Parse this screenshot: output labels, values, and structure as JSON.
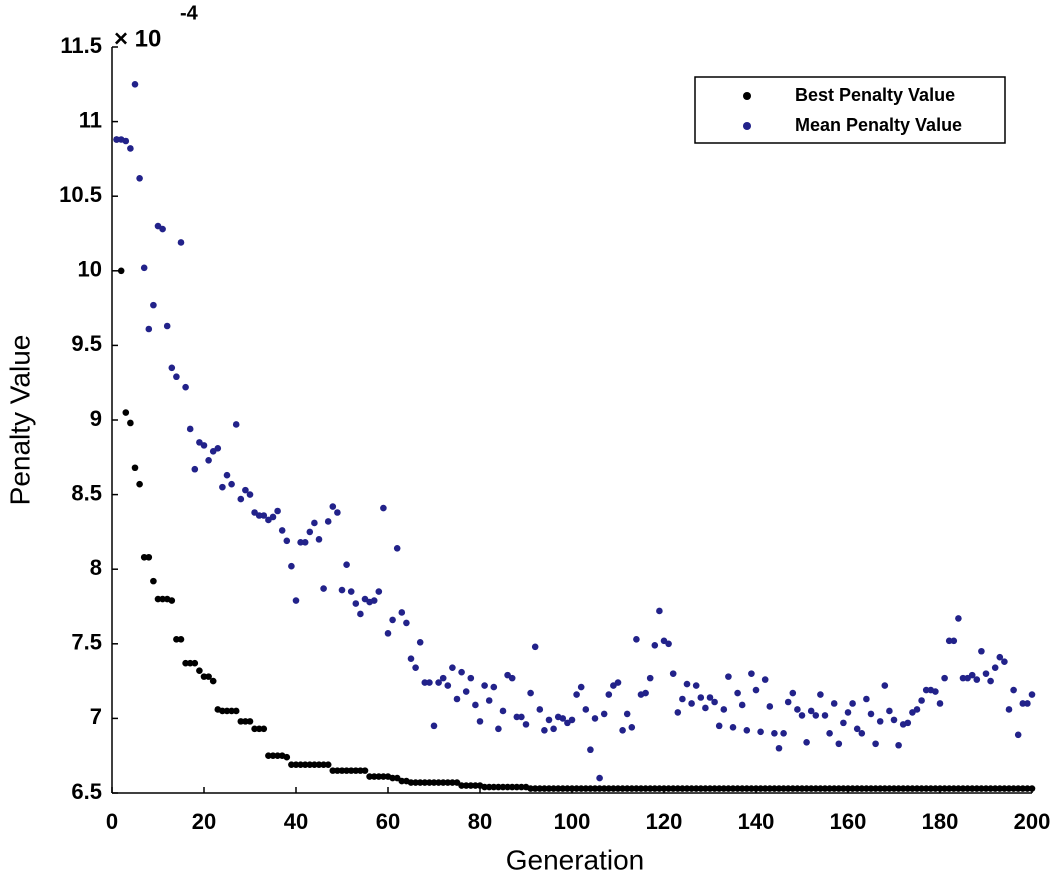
{
  "chart_data": {
    "type": "scatter",
    "xlabel": "Generation",
    "ylabel": "Penalty Value",
    "y_multiplier": {
      "base": "× 10",
      "exponent": "-4"
    },
    "xlim": [
      0,
      200
    ],
    "xticks": [
      0,
      20,
      40,
      60,
      80,
      100,
      120,
      140,
      160,
      180,
      200
    ],
    "ylim": [
      6.5,
      11.5
    ],
    "yticks": [
      6.5,
      7,
      7.5,
      8,
      8.5,
      9,
      9.5,
      10,
      10.5,
      11,
      11.5
    ],
    "grid": false,
    "legend": "upper right",
    "x": [
      1,
      2,
      3,
      4,
      5,
      6,
      7,
      8,
      9,
      10,
      11,
      12,
      13,
      14,
      15,
      16,
      17,
      18,
      19,
      20,
      21,
      22,
      23,
      24,
      25,
      26,
      27,
      28,
      29,
      30,
      31,
      32,
      33,
      34,
      35,
      36,
      37,
      38,
      39,
      40,
      41,
      42,
      43,
      44,
      45,
      46,
      47,
      48,
      49,
      50,
      51,
      52,
      53,
      54,
      55,
      56,
      57,
      58,
      59,
      60,
      61,
      62,
      63,
      64,
      65,
      66,
      67,
      68,
      69,
      70,
      71,
      72,
      73,
      74,
      75,
      76,
      77,
      78,
      79,
      80,
      81,
      82,
      83,
      84,
      85,
      86,
      87,
      88,
      89,
      90,
      91,
      92,
      93,
      94,
      95,
      96,
      97,
      98,
      99,
      100,
      101,
      102,
      103,
      104,
      105,
      106,
      107,
      108,
      109,
      110,
      111,
      112,
      113,
      114,
      115,
      116,
      117,
      118,
      119,
      120,
      121,
      122,
      123,
      124,
      125,
      126,
      127,
      128,
      129,
      130,
      131,
      132,
      133,
      134,
      135,
      136,
      137,
      138,
      139,
      140,
      141,
      142,
      143,
      144,
      145,
      146,
      147,
      148,
      149,
      150,
      151,
      152,
      153,
      154,
      155,
      156,
      157,
      158,
      159,
      160,
      161,
      162,
      163,
      164,
      165,
      166,
      167,
      168,
      169,
      170,
      171,
      172,
      173,
      174,
      175,
      176,
      177,
      178,
      179,
      180,
      181,
      182,
      183,
      184,
      185,
      186,
      187,
      188,
      189,
      190,
      191,
      192,
      193,
      194,
      195,
      196,
      197,
      198,
      199,
      200
    ],
    "series": [
      {
        "name": "Best Penalty Value",
        "color": "#000000",
        "values": [
          10.88,
          10.0,
          9.05,
          8.98,
          8.68,
          8.57,
          8.08,
          8.08,
          7.92,
          7.8,
          7.8,
          7.8,
          7.79,
          7.53,
          7.53,
          7.37,
          7.37,
          7.37,
          7.32,
          7.28,
          7.28,
          7.25,
          7.06,
          7.05,
          7.05,
          7.05,
          7.05,
          6.98,
          6.98,
          6.98,
          6.93,
          6.93,
          6.93,
          6.75,
          6.75,
          6.75,
          6.75,
          6.74,
          6.69,
          6.69,
          6.69,
          6.69,
          6.69,
          6.69,
          6.69,
          6.69,
          6.69,
          6.65,
          6.65,
          6.65,
          6.65,
          6.65,
          6.65,
          6.65,
          6.65,
          6.61,
          6.61,
          6.61,
          6.61,
          6.61,
          6.6,
          6.6,
          6.58,
          6.58,
          6.57,
          6.57,
          6.57,
          6.57,
          6.57,
          6.57,
          6.57,
          6.57,
          6.57,
          6.57,
          6.57,
          6.55,
          6.55,
          6.55,
          6.55,
          6.55,
          6.54,
          6.54,
          6.54,
          6.54,
          6.54,
          6.54,
          6.54,
          6.54,
          6.54,
          6.54,
          6.53,
          6.53,
          6.53,
          6.53,
          6.53,
          6.53,
          6.53,
          6.53,
          6.53,
          6.53,
          6.53,
          6.53,
          6.53,
          6.53,
          6.53,
          6.53,
          6.53,
          6.53,
          6.53,
          6.53,
          6.53,
          6.53,
          6.53,
          6.53,
          6.53,
          6.53,
          6.53,
          6.53,
          6.53,
          6.53,
          6.53,
          6.53,
          6.53,
          6.53,
          6.53,
          6.53,
          6.53,
          6.53,
          6.53,
          6.53,
          6.53,
          6.53,
          6.53,
          6.53,
          6.53,
          6.53,
          6.53,
          6.53,
          6.53,
          6.53,
          6.53,
          6.53,
          6.53,
          6.53,
          6.53,
          6.53,
          6.53,
          6.53,
          6.53,
          6.53,
          6.53,
          6.53,
          6.53,
          6.53,
          6.53,
          6.53,
          6.53,
          6.53,
          6.53,
          6.53,
          6.53,
          6.53,
          6.53,
          6.53,
          6.53,
          6.53,
          6.53,
          6.53,
          6.53,
          6.53,
          6.53,
          6.53,
          6.53,
          6.53,
          6.53,
          6.53,
          6.53,
          6.53,
          6.53,
          6.53,
          6.53,
          6.53,
          6.53,
          6.53,
          6.53,
          6.53,
          6.53,
          6.53,
          6.53,
          6.53,
          6.53,
          6.53,
          6.53,
          6.53,
          6.53,
          6.53,
          6.53,
          6.53,
          6.53,
          6.53
        ]
      },
      {
        "name": "Mean Penalty Value",
        "color": "#22228a",
        "values": [
          10.88,
          10.88,
          10.87,
          10.82,
          11.25,
          10.62,
          10.02,
          9.61,
          9.77,
          10.3,
          10.28,
          9.63,
          9.35,
          9.29,
          10.19,
          9.22,
          8.94,
          8.67,
          8.85,
          8.83,
          8.73,
          8.79,
          8.81,
          8.55,
          8.63,
          8.57,
          8.97,
          8.47,
          8.53,
          8.5,
          8.38,
          8.36,
          8.36,
          8.33,
          8.35,
          8.39,
          8.26,
          8.19,
          8.02,
          7.79,
          8.18,
          8.18,
          8.25,
          8.31,
          8.2,
          7.87,
          8.32,
          8.42,
          8.38,
          7.86,
          8.03,
          7.85,
          7.77,
          7.7,
          7.8,
          7.78,
          7.79,
          7.85,
          8.41,
          7.57,
          7.66,
          8.14,
          7.71,
          7.64,
          7.4,
          7.34,
          7.51,
          7.24,
          7.24,
          6.95,
          7.24,
          7.27,
          7.22,
          7.34,
          7.13,
          7.31,
          7.18,
          7.27,
          7.09,
          6.98,
          7.22,
          7.12,
          7.21,
          6.93,
          7.05,
          7.29,
          7.27,
          7.01,
          7.01,
          6.96,
          7.17,
          7.48,
          7.06,
          6.92,
          6.99,
          6.93,
          7.01,
          7.0,
          6.97,
          6.99,
          7.16,
          7.21,
          7.06,
          6.79,
          7.0,
          6.6,
          7.03,
          7.16,
          7.22,
          7.24,
          6.92,
          7.03,
          6.94,
          7.53,
          7.16,
          7.17,
          7.27,
          7.49,
          7.72,
          7.52,
          7.5,
          7.3,
          7.04,
          7.13,
          7.23,
          7.1,
          7.22,
          7.14,
          7.07,
          7.14,
          7.11,
          6.95,
          7.06,
          7.28,
          6.94,
          7.17,
          7.09,
          6.92,
          7.3,
          7.19,
          6.91,
          7.26,
          7.08,
          6.9,
          6.8,
          6.9,
          7.11,
          7.17,
          7.06,
          7.02,
          6.84,
          7.05,
          7.02,
          7.16,
          7.02,
          6.9,
          7.1,
          6.83,
          6.97,
          7.04,
          7.1,
          6.93,
          6.9,
          7.13,
          7.03,
          6.83,
          6.98,
          7.22,
          7.05,
          6.99,
          6.82,
          6.96,
          6.97,
          7.04,
          7.06,
          7.12,
          7.19,
          7.19,
          7.18,
          7.1,
          7.27,
          7.52,
          7.52,
          7.67,
          7.27,
          7.27,
          7.29,
          7.26,
          7.45,
          7.3,
          7.25,
          7.34,
          7.41,
          7.38,
          7.06,
          7.19,
          6.89,
          7.1,
          7.1,
          7.16
        ]
      }
    ]
  }
}
